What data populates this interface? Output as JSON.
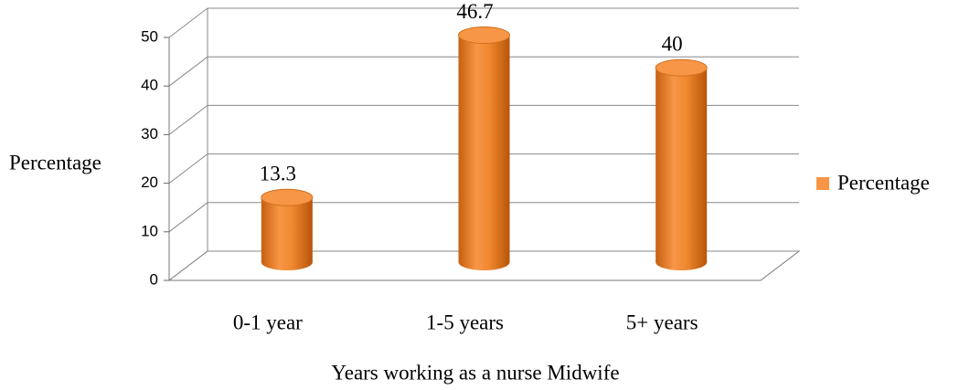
{
  "chart_data": {
    "type": "bar3d",
    "x_label": "Years working as a nurse Midwife",
    "y_label": "Percentage",
    "categories": [
      "0-1 year",
      "1-5 years",
      "5+ years"
    ],
    "series": [
      {
        "name": "Percentage",
        "color": "#f79646",
        "values": [
          13.3,
          46.7,
          40
        ]
      }
    ],
    "ylim": [
      0,
      50
    ],
    "yticks": [
      0,
      10,
      20,
      30,
      40,
      50
    ],
    "grid": true,
    "legend": "right"
  }
}
